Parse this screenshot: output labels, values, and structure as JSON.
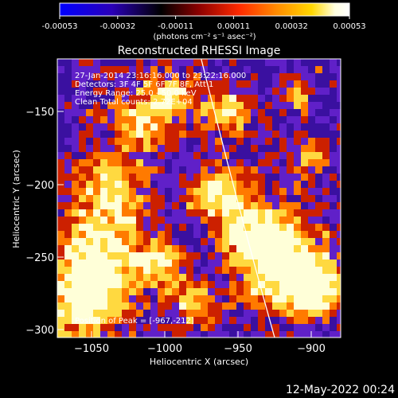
{
  "window": {
    "title": "Reconstructed RHESSI Image",
    "timestamp": "12-May-2022 00:24"
  },
  "colorbar": {
    "ticks": [
      "-0.00053",
      "-0.00032",
      "-0.00011",
      "0.00011",
      "0.00032",
      "0.00053"
    ],
    "units": "(photons cm⁻² s⁻¹ asec⁻²)",
    "colors": [
      "#0000ff",
      "#2200cc",
      "#000000",
      "#8b0000",
      "#ff2a00",
      "#ff8c00",
      "#ffd700",
      "#ffffe0",
      "#ffffff"
    ]
  },
  "image": {
    "info_lines": [
      "27-Jan-2014 23:16:16.000 to 23:22:16.000",
      "Detectors: 3F 4F 5F 6F 7F 8F, Att 1",
      "Energy Range: 25.0 - 50.0 keV",
      "Clean     Total counts: 2.72E+04"
    ],
    "peak_label": "Position of Peak = [-967,-212]",
    "x_axis": {
      "label": "Heliocentric X (arcsec)",
      "range": [
        -1073,
        -880
      ],
      "ticks": [
        -1050,
        -1000,
        -950,
        -900
      ],
      "tick_labels": [
        "−1050",
        "−1000",
        "−950",
        "−900"
      ]
    },
    "y_axis": {
      "label": "Heliocentric Y (arcsec)",
      "range": [
        -305,
        -124
      ],
      "ticks": [
        -150,
        -200,
        -250,
        -300
      ],
      "tick_labels": [
        "−150",
        "−200",
        "−250",
        "−300"
      ]
    },
    "limb_curve_points": [
      [
        -975,
        -124
      ],
      [
        -950,
        -220
      ],
      [
        -925,
        -305
      ]
    ],
    "palette": {
      "background": "#000000",
      "blue": "#3a10a0",
      "violet": "#6020c8",
      "red": "#cc2000",
      "orange": "#ff7a00",
      "yellow": "#ffd940",
      "white": "#ffffd8"
    }
  }
}
